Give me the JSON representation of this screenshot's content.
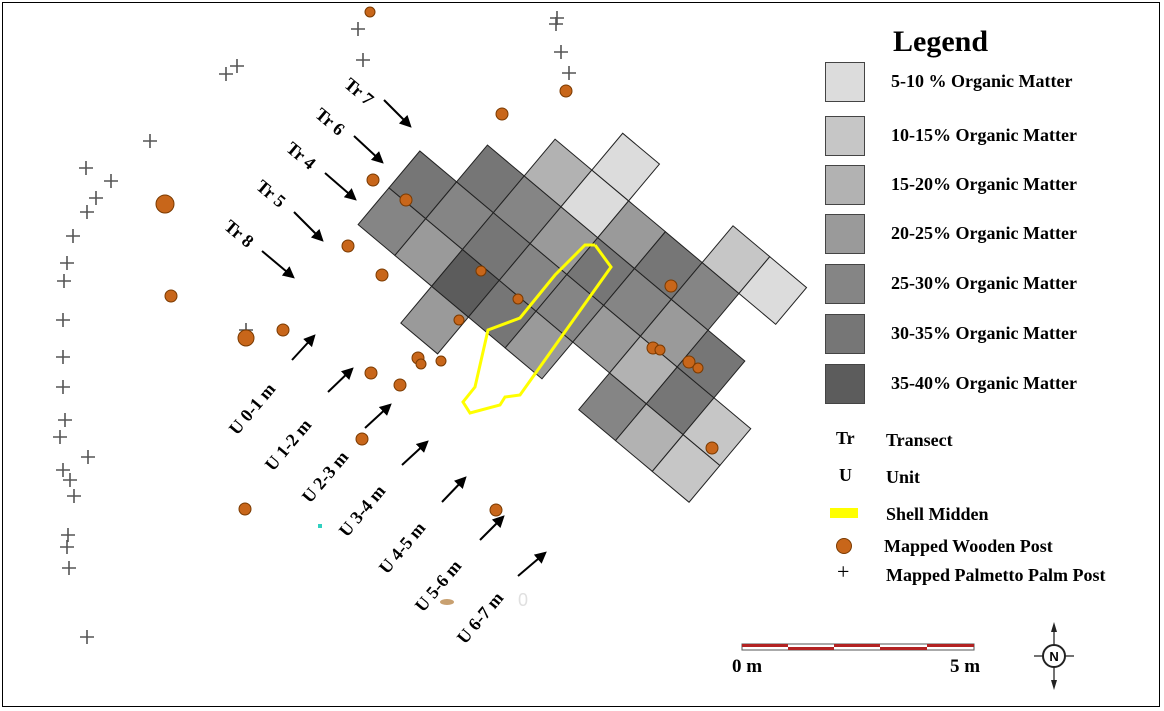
{
  "legend": {
    "title": "Legend",
    "organic_classes": [
      {
        "label": "5-10 % Organic Matter",
        "color": "#dcdcdc"
      },
      {
        "label": "10-15% Organic Matter",
        "color": "#c6c6c6"
      },
      {
        "label": "15-20% Organic Matter",
        "color": "#b2b2b2"
      },
      {
        "label": "20-25% Organic Matter",
        "color": "#9a9a9a"
      },
      {
        "label": "25-30% Organic Matter",
        "color": "#858585"
      },
      {
        "label": "30-35% Organic Matter",
        "color": "#767676"
      },
      {
        "label": "35-40% Organic Matter",
        "color": "#5c5c5c"
      }
    ],
    "symbols": [
      {
        "symbol": "Tr",
        "label": "Transect"
      },
      {
        "symbol": "U",
        "label": "Unit"
      },
      {
        "symbol": "",
        "label": "Shell Midden",
        "icon": "yellow-rect-icon",
        "color": "#ffff00"
      },
      {
        "symbol": "",
        "label": "Mapped Wooden Post",
        "icon": "orange-dot-icon",
        "color": "#c8661a"
      },
      {
        "symbol": "+",
        "label": "Mapped Palmetto Palm Post"
      }
    ]
  },
  "transects": [
    "Tr 7",
    "Tr 6",
    "Tr 4",
    "Tr 5",
    "Tr 8"
  ],
  "units": [
    "U 0-1 m",
    "U 1-2 m",
    "U 2-3 m",
    "U 3-4 m",
    "U 4-5 m",
    "U 5-6 m",
    "U 6-7 m"
  ],
  "scale_bar": {
    "start_label": "0 m",
    "end_label": "5 m",
    "color": "#b22222"
  },
  "north_arrow": {
    "label": "N",
    "icon": "north-arrow-icon"
  },
  "stray_label": "0"
}
